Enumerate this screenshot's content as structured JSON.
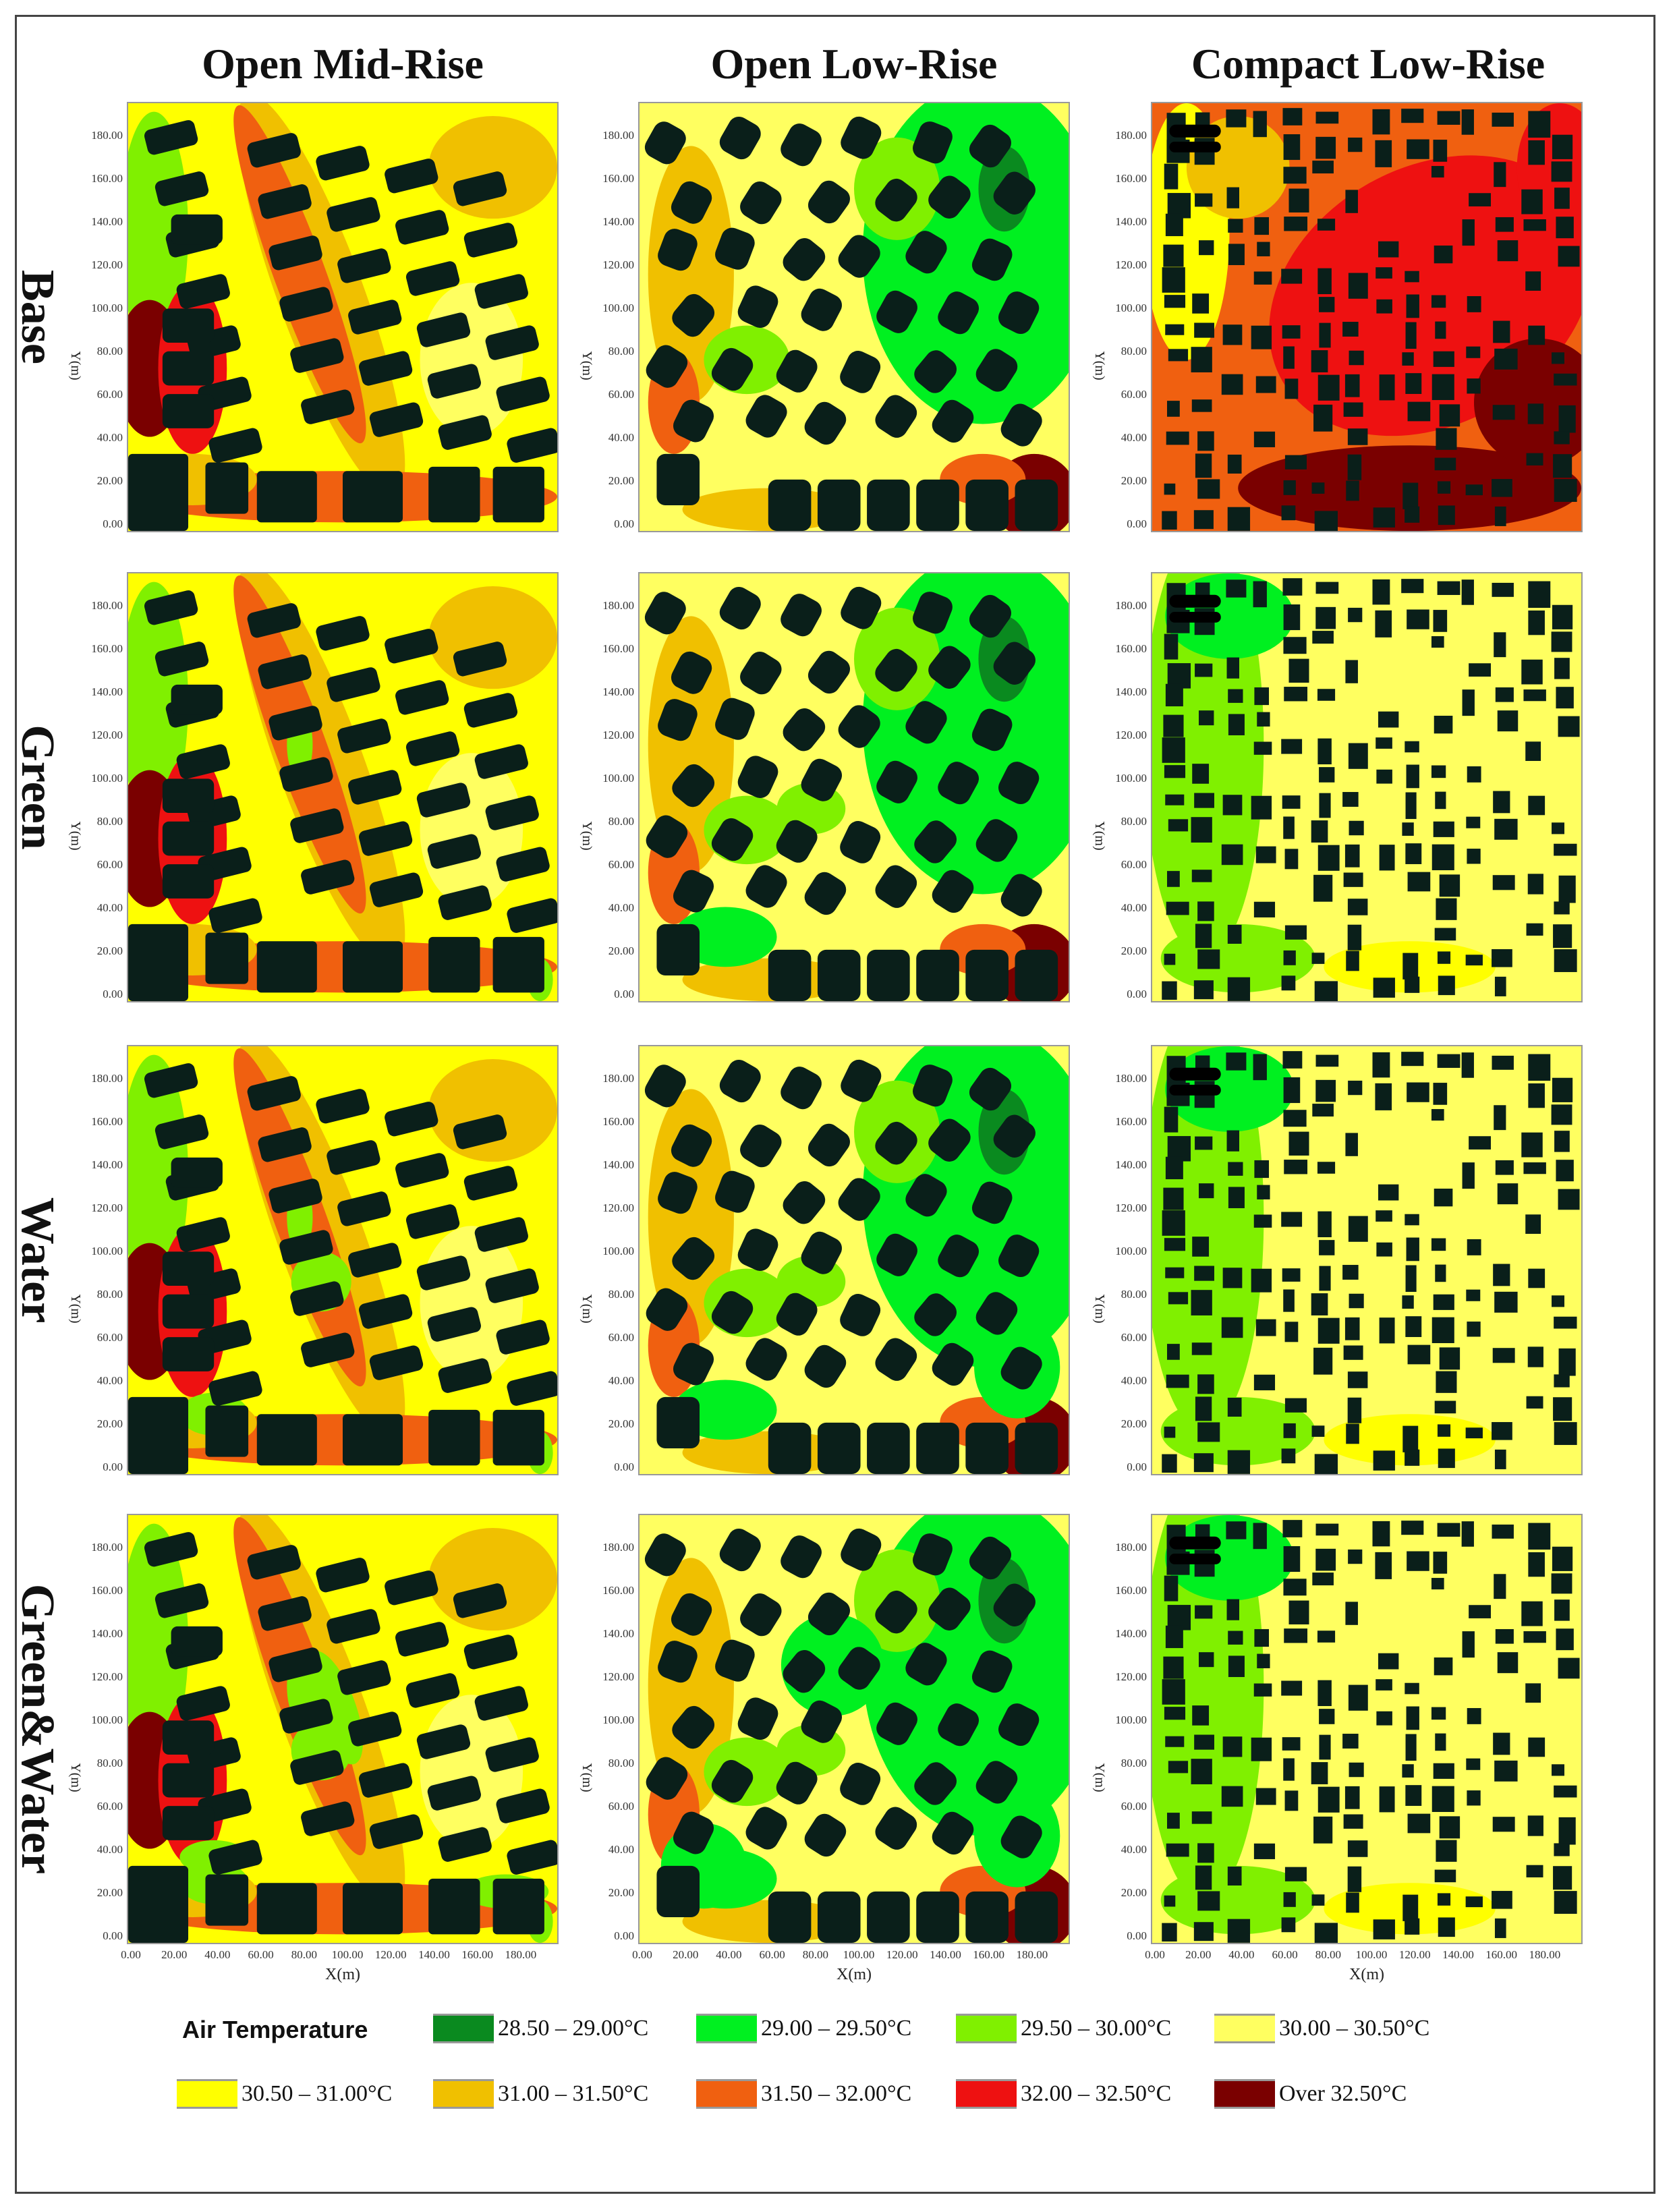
{
  "columns": [
    "Open Mid-Rise",
    "Open Low-Rise",
    "Compact Low-Rise"
  ],
  "rows": [
    "Base",
    "Green",
    "Water",
    "Green&Water"
  ],
  "axes": {
    "x_label": "X(m)",
    "y_label": "Y(m)",
    "x_ticks": [
      "0.00",
      "20.00",
      "40.00",
      "60.00",
      "80.00",
      "100.00",
      "120.00",
      "140.00",
      "160.00",
      "180.00"
    ],
    "y_ticks": [
      "0.00",
      "20.00",
      "40.00",
      "60.00",
      "80.00",
      "100.00",
      "120.00",
      "140.00",
      "160.00",
      "180.00"
    ]
  },
  "legend": {
    "title": "Air Temperature",
    "items": [
      {
        "label": "28.50 – 29.00°C",
        "color": "#0a8a1f"
      },
      {
        "label": "29.00 – 29.50°C",
        "color": "#00f020"
      },
      {
        "label": "29.50 – 30.00°C",
        "color": "#80f000"
      },
      {
        "label": "30.00 – 30.50°C",
        "color": "#ffff60"
      },
      {
        "label": "30.50 – 31.00°C",
        "color": "#ffff00"
      },
      {
        "label": "31.00 – 31.50°C",
        "color": "#f0c000"
      },
      {
        "label": "31.50 – 32.00°C",
        "color": "#f06010"
      },
      {
        "label": "32.00 – 32.50°C",
        "color": "#ee1111"
      },
      {
        "label": "Over 32.50°C",
        "color": "#7a0000"
      }
    ]
  },
  "building_color": "#0a1f1a"
}
